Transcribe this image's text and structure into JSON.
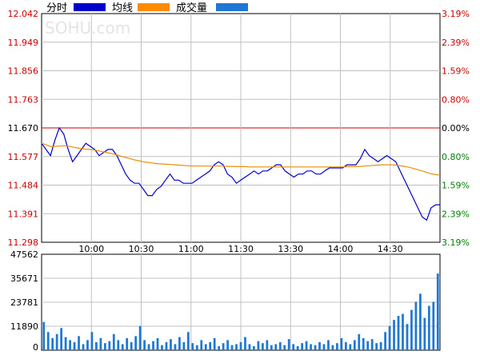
{
  "legend": [
    {
      "label": "分时",
      "color": "#0000cc"
    },
    {
      "label": "均线",
      "color": "#ff8c00"
    },
    {
      "label": "成交量",
      "color": "#1e78d2"
    }
  ],
  "watermark": "SOHU.com",
  "colors": {
    "price_line": "#0000cc",
    "avg_line": "#e8900a",
    "volume_bar": "#1e78d2",
    "ref_line": "#cc0000",
    "up_text": "#cc0000",
    "down_text": "#008000",
    "neutral_text": "#000000",
    "grid": "#c0c0c0",
    "axis": "#000000"
  },
  "chart_data": [
    {
      "type": "line",
      "title": "",
      "x_tick_labels": [
        "10:00",
        "10:30",
        "11:00",
        "11:30",
        "13:30",
        "14:00",
        "14:30"
      ],
      "y_left_ticks": [
        "12.042",
        "11.949",
        "11.856",
        "11.763",
        "11.670",
        "11.577",
        "11.484",
        "11.391",
        "11.298"
      ],
      "y_right_ticks": [
        "3.19%",
        "2.39%",
        "1.59%",
        "0.80%",
        "0.00%",
        "0.80%",
        "1.59%",
        "2.39%",
        "3.19%"
      ],
      "ylim": [
        11.298,
        12.042
      ],
      "reference_price": 11.67,
      "series": [
        {
          "name": "分时",
          "values": [
            11.62,
            11.6,
            11.58,
            11.63,
            11.67,
            11.65,
            11.6,
            11.56,
            11.58,
            11.6,
            11.62,
            11.61,
            11.6,
            11.58,
            11.59,
            11.6,
            11.6,
            11.58,
            11.55,
            11.52,
            11.5,
            11.49,
            11.49,
            11.47,
            11.45,
            11.45,
            11.47,
            11.48,
            11.5,
            11.52,
            11.5,
            11.5,
            11.49,
            11.49,
            11.49,
            11.5,
            11.51,
            11.52,
            11.53,
            11.55,
            11.56,
            11.55,
            11.52,
            11.51,
            11.49,
            11.5,
            11.51,
            11.52,
            11.53,
            11.52,
            11.53,
            11.53,
            11.54,
            11.55,
            11.55,
            11.53,
            11.52,
            11.51,
            11.52,
            11.52,
            11.53,
            11.53,
            11.52,
            11.52,
            11.53,
            11.54,
            11.54,
            11.54,
            11.54,
            11.55,
            11.55,
            11.55,
            11.57,
            11.6,
            11.58,
            11.57,
            11.56,
            11.57,
            11.58,
            11.57,
            11.56,
            11.53,
            11.5,
            11.47,
            11.44,
            11.41,
            11.38,
            11.37,
            11.41,
            11.42,
            11.42
          ]
        },
        {
          "name": "均线",
          "values": [
            11.62,
            11.615,
            11.61,
            11.61,
            11.611,
            11.612,
            11.611,
            11.608,
            11.605,
            11.603,
            11.601,
            11.6,
            11.598,
            11.595,
            11.592,
            11.589,
            11.586,
            11.582,
            11.578,
            11.574,
            11.57,
            11.566,
            11.563,
            11.56,
            11.558,
            11.556,
            11.554,
            11.553,
            11.552,
            11.551,
            11.55,
            11.549,
            11.548,
            11.547,
            11.546,
            11.546,
            11.546,
            11.546,
            11.546,
            11.546,
            11.546,
            11.546,
            11.545,
            11.545,
            11.544,
            11.544,
            11.544,
            11.543,
            11.543,
            11.543,
            11.543,
            11.543,
            11.543,
            11.543,
            11.543,
            11.543,
            11.543,
            11.543,
            11.543,
            11.543,
            11.543,
            11.543,
            11.543,
            11.543,
            11.543,
            11.543,
            11.543,
            11.543,
            11.543,
            11.544,
            11.544,
            11.544,
            11.545,
            11.546,
            11.547,
            11.548,
            11.549,
            11.55,
            11.55,
            11.55,
            11.549,
            11.547,
            11.545,
            11.542,
            11.538,
            11.534,
            11.53,
            11.525,
            11.521,
            11.518,
            11.516
          ]
        }
      ]
    },
    {
      "type": "bar",
      "title": "",
      "y_tick_labels": [
        "47562",
        "35671",
        "23781",
        "11890",
        "0"
      ],
      "ylim": [
        0,
        47562
      ],
      "series": [
        {
          "name": "成交量",
          "values": [
            14000,
            9000,
            6000,
            8000,
            11000,
            6500,
            5000,
            4000,
            7000,
            3000,
            5000,
            9000,
            4000,
            6000,
            3500,
            4500,
            8000,
            5000,
            3000,
            6000,
            4000,
            7000,
            12000,
            5000,
            3000,
            4500,
            6000,
            2500,
            4000,
            5500,
            3000,
            6500,
            4000,
            9000,
            3500,
            2500,
            5000,
            3000,
            4000,
            6000,
            2000,
            3500,
            5000,
            2500,
            3000,
            4000,
            6500,
            3000,
            2000,
            4500,
            3500,
            5000,
            2500,
            3000,
            4000,
            2500,
            5500,
            3000,
            2000,
            3500,
            4500,
            3000,
            2500,
            4000,
            3000,
            5000,
            2500,
            3500,
            6000,
            4000,
            3000,
            5000,
            8000,
            6000,
            4500,
            5500,
            3500,
            4000,
            9000,
            12000,
            15000,
            17000,
            18000,
            13000,
            20000,
            24000,
            28000,
            16000,
            22000,
            24000,
            38000
          ]
        }
      ]
    }
  ]
}
